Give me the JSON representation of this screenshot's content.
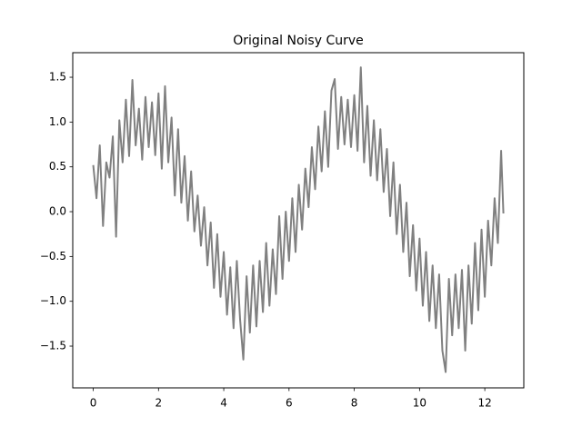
{
  "chart_data": {
    "type": "line",
    "title": "Original Noisy Curve",
    "x": [
      0,
      0.1,
      0.2,
      0.3,
      0.4,
      0.5,
      0.6,
      0.7,
      0.8,
      0.9,
      1.0,
      1.1,
      1.2,
      1.3,
      1.4,
      1.5,
      1.6,
      1.7,
      1.8,
      1.9,
      2.0,
      2.1,
      2.2,
      2.3,
      2.4,
      2.5,
      2.6,
      2.7,
      2.8,
      2.9,
      3.0,
      3.1,
      3.2,
      3.3,
      3.4,
      3.5,
      3.6,
      3.7,
      3.8,
      3.9,
      4.0,
      4.1,
      4.2,
      4.3,
      4.4,
      4.5,
      4.6,
      4.7,
      4.8,
      4.9,
      5.0,
      5.1,
      5.2,
      5.3,
      5.4,
      5.5,
      5.6,
      5.7,
      5.8,
      5.9,
      6.0,
      6.1,
      6.2,
      6.3,
      6.4,
      6.5,
      6.6,
      6.7,
      6.8,
      6.9,
      7.0,
      7.1,
      7.2,
      7.3,
      7.4,
      7.5,
      7.6,
      7.7,
      7.8,
      7.9,
      8.0,
      8.1,
      8.2,
      8.3,
      8.4,
      8.5,
      8.6,
      8.7,
      8.8,
      8.9,
      9.0,
      9.1,
      9.2,
      9.3,
      9.4,
      9.5,
      9.6,
      9.7,
      9.8,
      9.9,
      10.0,
      10.1,
      10.2,
      10.3,
      10.4,
      10.5,
      10.6,
      10.7,
      10.8,
      10.9,
      11.0,
      11.1,
      11.2,
      11.3,
      11.4,
      11.5,
      11.6,
      11.7,
      11.8,
      11.9,
      12.0,
      12.1,
      12.2,
      12.3,
      12.4,
      12.5,
      12.57
    ],
    "series": [
      {
        "color": "#808080",
        "values": [
          0.52,
          0.15,
          0.74,
          -0.16,
          0.55,
          0.38,
          0.84,
          -0.28,
          1.02,
          0.55,
          1.25,
          0.62,
          1.47,
          0.74,
          1.15,
          0.58,
          1.28,
          0.72,
          1.22,
          0.63,
          1.32,
          0.48,
          1.4,
          0.55,
          1.05,
          0.18,
          0.92,
          0.1,
          0.62,
          -0.1,
          0.45,
          -0.22,
          0.18,
          -0.38,
          0.05,
          -0.6,
          -0.12,
          -0.85,
          -0.25,
          -0.95,
          -0.45,
          -1.15,
          -0.62,
          -1.3,
          -0.55,
          -1.2,
          -1.65,
          -0.72,
          -1.35,
          -0.6,
          -1.28,
          -0.55,
          -1.12,
          -0.35,
          -1.05,
          -0.42,
          -0.92,
          -0.05,
          -0.75,
          0.0,
          -0.55,
          0.15,
          -0.45,
          0.3,
          -0.2,
          0.48,
          0.05,
          0.72,
          0.25,
          0.95,
          0.45,
          1.12,
          0.5,
          1.35,
          1.48,
          0.7,
          1.28,
          0.75,
          1.25,
          0.72,
          1.3,
          0.68,
          1.61,
          0.55,
          1.18,
          0.4,
          1.02,
          0.35,
          0.92,
          0.22,
          0.7,
          -0.05,
          0.55,
          -0.25,
          0.3,
          -0.45,
          0.1,
          -0.72,
          -0.15,
          -0.88,
          -0.3,
          -1.05,
          -0.45,
          -1.22,
          -0.6,
          -1.3,
          -0.7,
          -1.55,
          -1.79,
          -0.75,
          -1.38,
          -0.7,
          -1.3,
          -0.65,
          -1.55,
          -0.6,
          -1.25,
          -0.35,
          -1.1,
          -0.2,
          -0.95,
          -0.1,
          -0.6,
          0.15,
          -0.35,
          0.68,
          -0.02
        ]
      }
    ],
    "xlim": [
      -0.628,
      13.195
    ],
    "ylim": [
      -1.966,
      1.774
    ],
    "xticks": [
      0,
      2,
      4,
      6,
      8,
      10,
      12
    ],
    "yticks": [
      {
        "value": -1.5,
        "label": "−1.5"
      },
      {
        "value": -1.0,
        "label": "−1.0"
      },
      {
        "value": -0.5,
        "label": "−0.5"
      },
      {
        "value": 0.0,
        "label": "0.0"
      },
      0.5,
      {
        "value": 1.0,
        "label": "1.0"
      },
      1.5
    ]
  }
}
